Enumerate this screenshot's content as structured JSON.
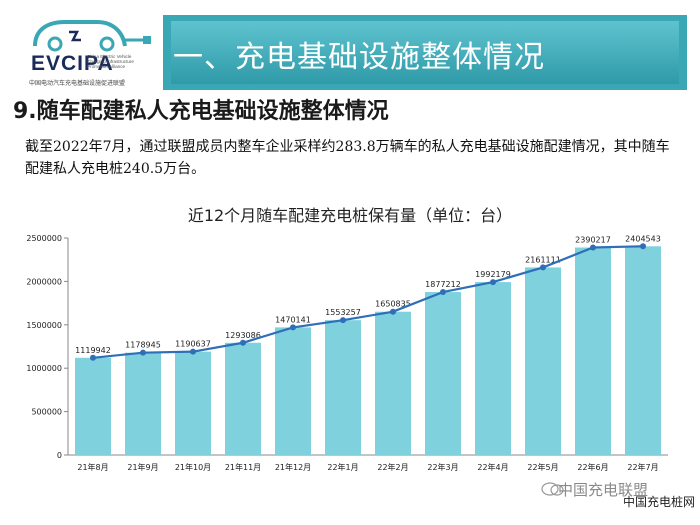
{
  "header": {
    "logo_text": "EVCIPA",
    "logo_subtitle": "China Electric Vehicle Charging Infrastructure Promotion Alliance",
    "logo_cn": "中国电动汽车充电基础设施促进联盟",
    "title": "一、充电基础设施整体情况"
  },
  "section": {
    "subtitle": "9.随车配建私人充电基础设施整体情况",
    "paragraph": "截至2022年7月，通过联盟成员内整车企业采样约283.8万辆车的私人充电基础设施配建情况，其中随车配建私人充电桩240.5万台。"
  },
  "watermark": {
    "text1": "中国充电联盟",
    "text2": "中国充电桩网"
  },
  "colors": {
    "bar": "#7fd1de",
    "line": "#2e6fb7",
    "title_band": "#3aa7b5"
  },
  "chart_data": {
    "type": "bar",
    "title": "近12个月随车配建充电桩保有量（单位：台）",
    "categories": [
      "21年8月",
      "21年9月",
      "21年10月",
      "21年11月",
      "21年12月",
      "22年1月",
      "22年2月",
      "22年3月",
      "22年4月",
      "22年5月",
      "22年6月",
      "22年7月"
    ],
    "values": [
      1119942,
      1178945,
      1190637,
      1293086,
      1470141,
      1553257,
      1650835,
      1877212,
      1992179,
      2161111,
      2390217,
      2404543
    ],
    "yticks": [
      "0",
      "500000",
      "1000000",
      "1500000",
      "2000000",
      "2500000"
    ],
    "ylim": [
      0,
      2500000
    ],
    "overlay_line": true,
    "grid": false
  }
}
